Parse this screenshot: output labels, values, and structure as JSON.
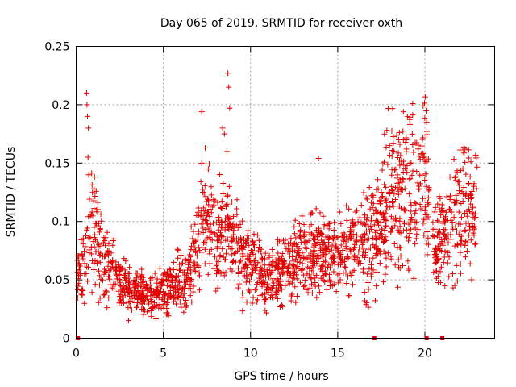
{
  "chart_data": {
    "type": "scatter",
    "title": "Day 065 of 2019, SRMTID for receiver oxth",
    "xlabel": "GPS time / hours",
    "ylabel": "SRMTID / TECUs",
    "xlim": [
      0,
      24
    ],
    "ylim": [
      0,
      0.25
    ],
    "xticks": [
      0,
      5,
      10,
      15,
      20
    ],
    "yticks": [
      0,
      0.05,
      0.1,
      0.15,
      0.2,
      0.25
    ],
    "xtick_labels": [
      "0",
      "5",
      "10",
      "15",
      "20"
    ],
    "ytick_labels": [
      "0",
      "0.05",
      "0.1",
      "0.15",
      "0.2",
      "0.25"
    ],
    "grid": true,
    "marker": "+",
    "color": "#e00000",
    "zero_points_x": [
      0.1,
      17.1,
      20.1,
      21.0
    ],
    "trend": {
      "x": [
        0.0,
        0.5,
        0.9,
        1.5,
        2.5,
        3.5,
        4.5,
        5.5,
        6.5,
        7.0,
        7.5,
        8.0,
        8.5,
        9.0,
        10.0,
        11.0,
        12.0,
        13.0,
        14.0,
        15.0,
        16.0,
        17.0,
        17.5,
        18.0,
        18.5,
        19.0,
        19.5,
        20.0,
        20.5,
        21.0,
        21.5,
        22.0,
        22.5,
        23.0
      ],
      "y": [
        0.05,
        0.06,
        0.1,
        0.07,
        0.05,
        0.04,
        0.035,
        0.045,
        0.05,
        0.09,
        0.1,
        0.09,
        0.095,
        0.08,
        0.06,
        0.05,
        0.06,
        0.07,
        0.075,
        0.07,
        0.075,
        0.085,
        0.1,
        0.12,
        0.12,
        0.125,
        0.12,
        0.14,
        0.08,
        0.08,
        0.1,
        0.11,
        0.11,
        0.1
      ]
    },
    "outliers": [
      {
        "x": 0.6,
        "y": 0.21
      },
      {
        "x": 0.62,
        "y": 0.2
      },
      {
        "x": 0.65,
        "y": 0.19
      },
      {
        "x": 0.7,
        "y": 0.18
      },
      {
        "x": 0.68,
        "y": 0.155
      },
      {
        "x": 0.72,
        "y": 0.14
      },
      {
        "x": 7.2,
        "y": 0.194
      },
      {
        "x": 7.4,
        "y": 0.163
      },
      {
        "x": 8.4,
        "y": 0.18
      },
      {
        "x": 8.5,
        "y": 0.175
      },
      {
        "x": 8.7,
        "y": 0.227
      },
      {
        "x": 8.75,
        "y": 0.215
      },
      {
        "x": 8.8,
        "y": 0.197
      },
      {
        "x": 8.65,
        "y": 0.16
      },
      {
        "x": 13.9,
        "y": 0.154
      },
      {
        "x": 18.5,
        "y": 0.17
      },
      {
        "x": 19.0,
        "y": 0.19
      },
      {
        "x": 19.3,
        "y": 0.201
      },
      {
        "x": 19.9,
        "y": 0.199
      },
      {
        "x": 20.1,
        "y": 0.185
      },
      {
        "x": 22.3,
        "y": 0.162
      }
    ]
  }
}
